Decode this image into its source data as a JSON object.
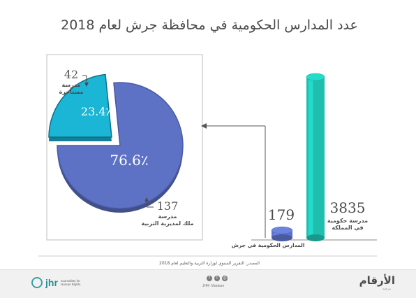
{
  "header": {
    "title": "عدد المدارس الحكومية في محافظة جرش لعام 2018"
  },
  "chart_data": [
    {
      "type": "bar",
      "categories": [
        "مدرسة حكومية في المملكة",
        "المدارس الحكومية في جرش"
      ],
      "values": [
        3835,
        179
      ],
      "value_labels": [
        "3835",
        "179"
      ],
      "ylim": [
        0,
        3835
      ]
    },
    {
      "type": "pie",
      "slices": [
        {
          "value": 76.6,
          "label": "76.6٪",
          "count": "137",
          "desc_line1": "مدرسة",
          "desc_line2": "ملك لمديرية التربية",
          "color": "#5d72c4"
        },
        {
          "value": 23.4,
          "label": "23.4٪",
          "count": "42",
          "desc_line1": "مدرسة",
          "desc_line2": "مستأجرة",
          "color": "#1bb5d6"
        }
      ]
    }
  ],
  "bars": {
    "kingdom": {
      "value": "3835",
      "line1": "مدرسة حكومية",
      "line2": "في المملكة",
      "color": "#1fbfb0"
    },
    "jerash": {
      "value": "179",
      "label": "المدارس الحكومية في جرش",
      "color": "#5d72c4"
    }
  },
  "pie_labels": {
    "owned": {
      "count": "137",
      "line1": "مدرسة",
      "line2": "ملك لمديرية التربية",
      "pct": "76.6٪"
    },
    "rented": {
      "count": "42",
      "line1": "مدرسة",
      "line2": "مستأجرة",
      "pct": "23.4٪"
    }
  },
  "source": "المصدر: التقرير السنوي لوزارة التربية والتعليم لعام 2018",
  "footer": {
    "jhr_name": "jhr",
    "jhr_tagline": "Journalists for Human Rights",
    "social_handle": "JHR- Mardam",
    "brand_name": "الأرقام",
    "brand_sub": "مرصد",
    "icons": [
      "facebook-icon",
      "twitter-icon",
      "instagram-icon"
    ]
  }
}
